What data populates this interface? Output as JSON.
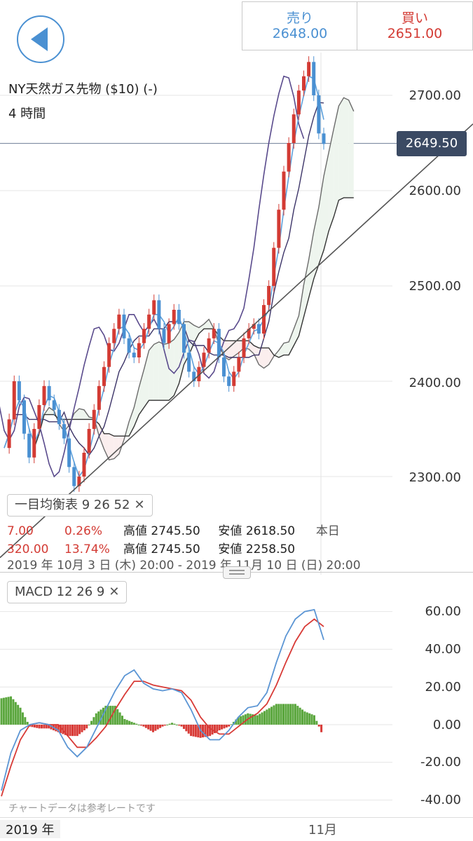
{
  "header": {
    "sell_label": "売り",
    "sell_price": "2648.00",
    "buy_label": "買い",
    "buy_price": "2651.00"
  },
  "instrument": {
    "name": "NY天然ガス先物 ($10) (-)",
    "timeframe": "4 時間"
  },
  "current_price_tag": "2649.50",
  "indicators": {
    "main": "一目均衡表  9  26  52",
    "sub": "MACD  12  26  9"
  },
  "stats": {
    "row1": {
      "change": "7.00",
      "pct": "0.26%",
      "high_label": "高値",
      "high": "2745.50",
      "low_label": "安値",
      "low": "2618.50",
      "period": "本日"
    },
    "row2": {
      "change": "320.00",
      "pct": "13.74%",
      "high_label": "高値",
      "high": "2745.50",
      "low_label": "安値",
      "low": "2258.50"
    },
    "range": "2019 年 10月 3 日 (木) 20:00 - 2019 年 11月 10 日 (日) 20:00"
  },
  "footer": {
    "note": "チャートデータは参考レートです",
    "year": "2019 年",
    "month": "11月"
  },
  "colors": {
    "up": "#d33b34",
    "down": "#4a90d2",
    "tenkan": "#5ea1dc",
    "kijun": "#3c3468",
    "chikou": "#594a8c",
    "senkou_a": "#6b6b6b",
    "senkou_b": "#333333",
    "kumo_bear": "#fbeeee",
    "kumo_bull": "#eef5ee",
    "macd": "#5b95d4",
    "signal": "#d83a36",
    "hist_pos": "#5aa63d",
    "hist_neg": "#d83a36"
  },
  "chart_data": [
    {
      "type": "candlestick",
      "title": "NY天然ガス先物 ($10) (-)",
      "xlabel": "",
      "ylabel": "",
      "y_ticks": [
        "2300.00",
        "2400.00",
        "2500.00",
        "2600.00",
        "2700.00"
      ],
      "ylim": [
        2255,
        2750
      ],
      "x_tick": "11月",
      "current_price": 2649.5,
      "trendlines": [
        {
          "from": [
            "2019-10-03",
            2220
          ],
          "to": [
            "2019-11-14",
            2670
          ]
        }
      ],
      "price_path": [
        2330,
        2360,
        2400,
        2380,
        2345,
        2320,
        2350,
        2375,
        2395,
        2380,
        2370,
        2355,
        2340,
        2310,
        2290,
        2300,
        2325,
        2350,
        2370,
        2395,
        2415,
        2440,
        2455,
        2470,
        2445,
        2430,
        2425,
        2440,
        2455,
        2470,
        2485,
        2455,
        2440,
        2460,
        2475,
        2460,
        2430,
        2410,
        2400,
        2415,
        2430,
        2445,
        2455,
        2425,
        2405,
        2395,
        2410,
        2425,
        2445,
        2455,
        2460,
        2450,
        2480,
        2500,
        2540,
        2580,
        2620,
        2650,
        2680,
        2705,
        2720,
        2735,
        2700,
        2660,
        2649
      ]
    },
    {
      "type": "line",
      "title": "MACD  12  26  9",
      "y_ticks": [
        "-40.00",
        "-20.00",
        "0.00",
        "20.00",
        "40.00",
        "60.00"
      ],
      "ylim": [
        -42,
        62
      ],
      "series": [
        {
          "name": "MACD",
          "values": [
            -35,
            -15,
            -3,
            0,
            1,
            0,
            -3,
            -12,
            -17,
            -12,
            -2,
            8,
            18,
            26,
            29,
            22,
            19,
            18,
            19,
            17,
            8,
            -3,
            -8,
            -8,
            -3,
            4,
            9,
            10,
            17,
            33,
            47,
            56,
            60,
            61,
            45
          ]
        },
        {
          "name": "Signal",
          "values": [
            -38,
            -22,
            -8,
            0,
            1,
            0,
            0,
            -6,
            -12,
            -12,
            -7,
            -1,
            8,
            16,
            23,
            23,
            21,
            20,
            19,
            18,
            13,
            4,
            -2,
            -5,
            -5,
            -1,
            3,
            6,
            11,
            21,
            33,
            44,
            52,
            56,
            52
          ]
        }
      ],
      "histogram": [
        14,
        15,
        9,
        -1,
        -2,
        -2,
        -4,
        -6,
        -6,
        -2,
        6,
        10,
        10,
        3,
        1,
        -1,
        -4,
        -1,
        1,
        -1,
        -6,
        -7,
        -6,
        -3,
        -1,
        4,
        6,
        5,
        8,
        11,
        11,
        11,
        7,
        5,
        -7
      ]
    }
  ]
}
